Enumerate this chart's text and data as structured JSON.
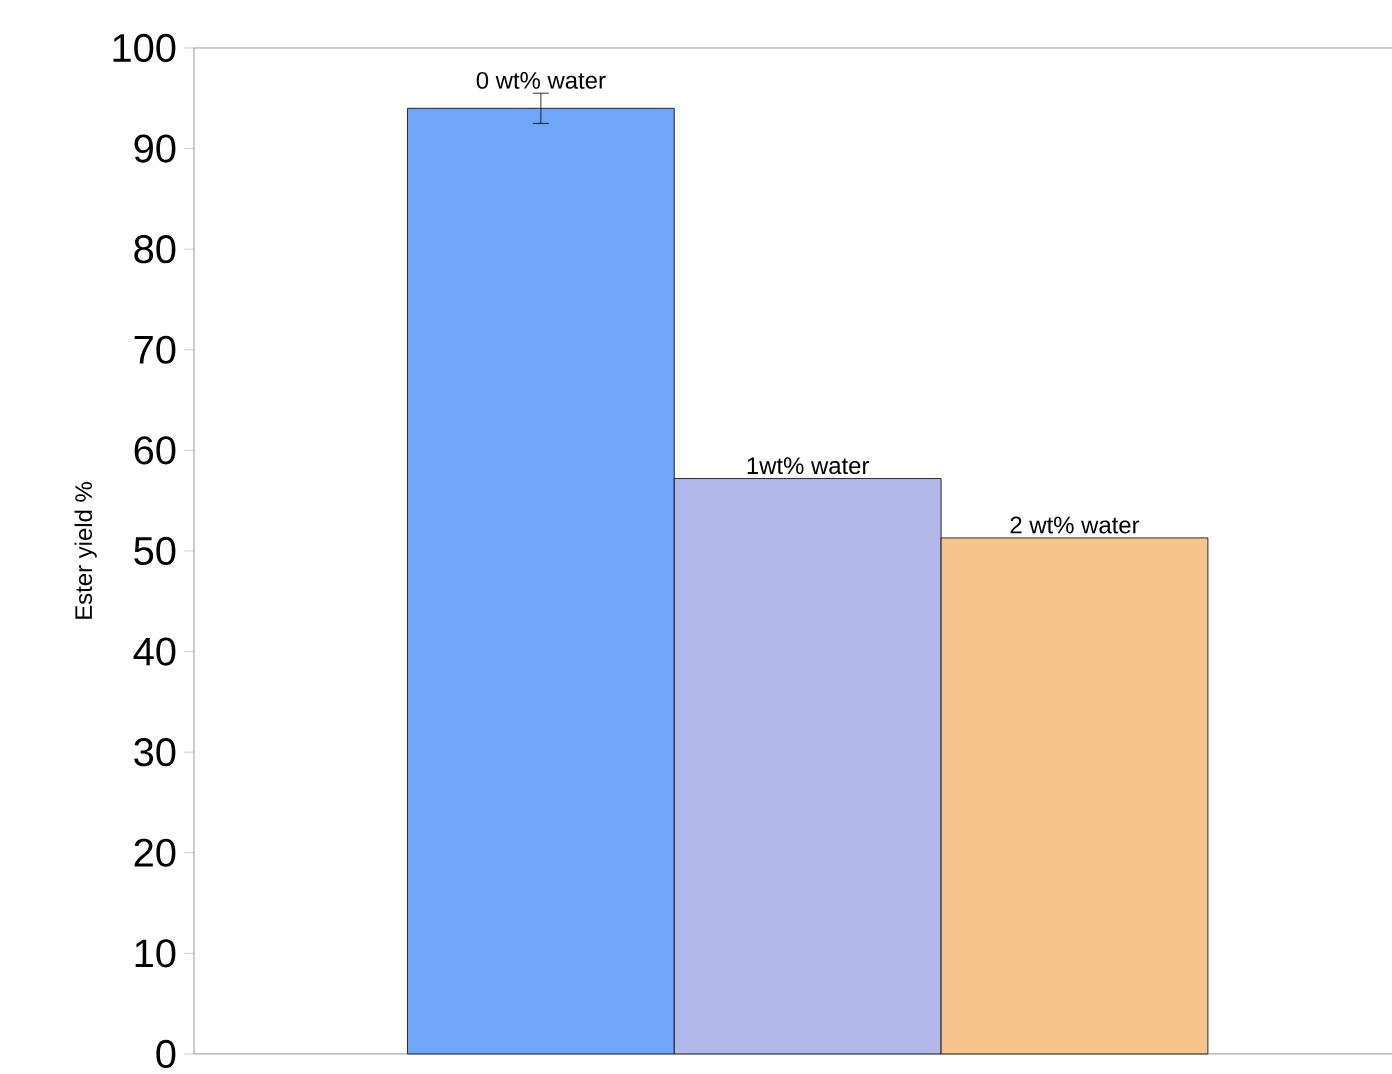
{
  "chart_data": {
    "type": "bar",
    "ylabel": "Ester yield %",
    "categories": [
      "0 wt% water",
      "1wt% water",
      "2 wt% water"
    ],
    "values": [
      94,
      57.2,
      51.3
    ],
    "errors": [
      1.5,
      null,
      null
    ],
    "colors": [
      "#6fa6f7",
      "#b3b8ea",
      "#f7c48e"
    ],
    "ylim": [
      0,
      100
    ],
    "yticks": [
      0,
      10,
      20,
      30,
      40,
      50,
      60,
      70,
      80,
      90,
      100
    ]
  }
}
